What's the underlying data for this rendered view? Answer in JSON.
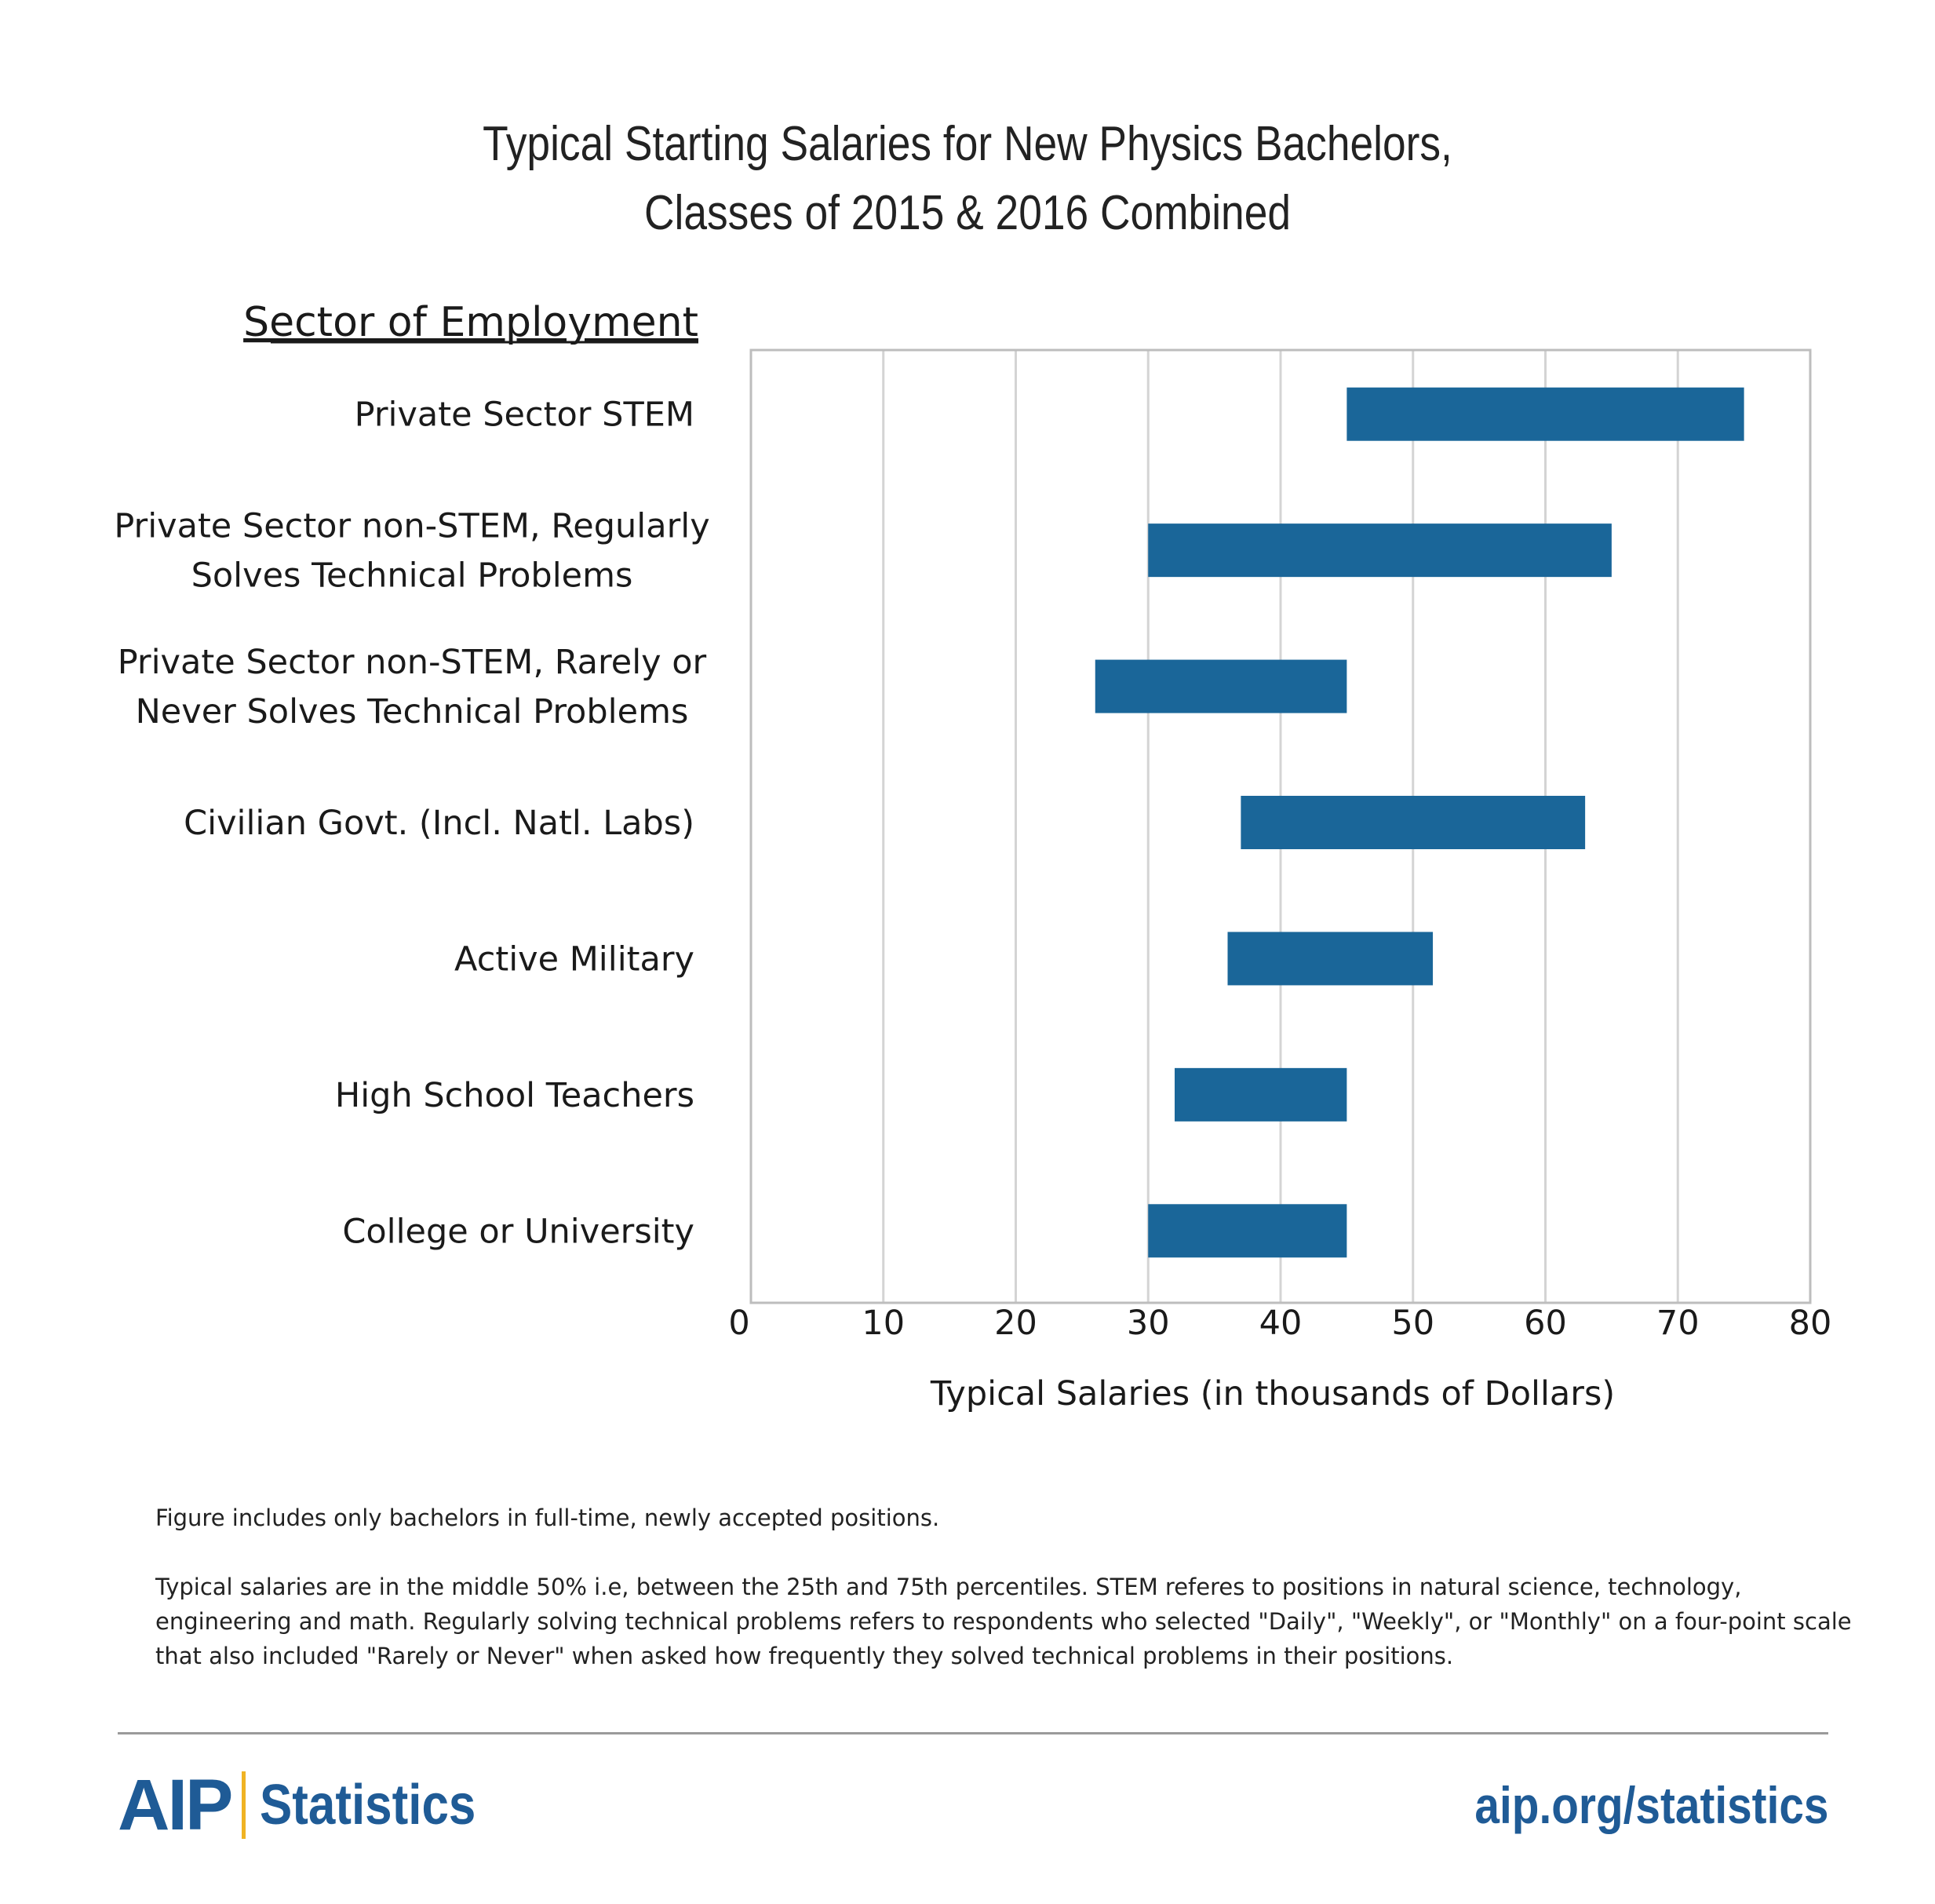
{
  "chart_data": {
    "type": "bar",
    "orientation": "horizontal-floating",
    "title_lines": [
      "Typical Starting Salaries for New Physics Bachelors,",
      "Classes of 2015 & 2016 Combined"
    ],
    "ylabel": "Sector of Employment",
    "xlabel": "Typical Salaries (in thousands of Dollars)",
    "xlim": [
      0,
      80
    ],
    "xticks": [
      "0",
      "10",
      "20",
      "30",
      "40",
      "50",
      "60",
      "70",
      "80"
    ],
    "grid": true,
    "bar_color": "#1a6699",
    "categories": [
      {
        "label_lines": [
          "Private Sector STEM"
        ],
        "low": 45,
        "high": 75
      },
      {
        "label_lines": [
          "Private Sector non-STEM, Regularly",
          "Solves  Technical Problems"
        ],
        "low": 30,
        "high": 65
      },
      {
        "label_lines": [
          "Private Sector non-STEM, Rarely or",
          "Never Solves  Technical Problems"
        ],
        "low": 26,
        "high": 45
      },
      {
        "label_lines": [
          "Civilian Govt. (Incl. Natl. Labs)"
        ],
        "low": 37,
        "high": 63
      },
      {
        "label_lines": [
          "Active Military"
        ],
        "low": 36,
        "high": 51.5
      },
      {
        "label_lines": [
          "High School Teachers"
        ],
        "low": 32,
        "high": 45
      },
      {
        "label_lines": [
          "College or University"
        ],
        "low": 30,
        "high": 45
      }
    ]
  },
  "notes": [
    "Figure includes only bachelors in full-time, newly accepted positions.",
    "Typical salaries are in the middle 50% i.e, between the 25th and 75th percentiles. STEM referes to positions in natural science, technology, engineering and math. Regularly solving technical problems refers to respondents who selected \"Daily\", \"Weekly\", or \"Monthly\" on a four-point scale that also included \"Rarely or Never\" when asked how frequently they solved technical problems in their positions."
  ],
  "footer": {
    "brand_aip": "AIP",
    "brand_statistics": "Statistics",
    "url": "aip.org/statistics",
    "brand_color": "#1f5b96",
    "accent_color": "#f0b323"
  }
}
